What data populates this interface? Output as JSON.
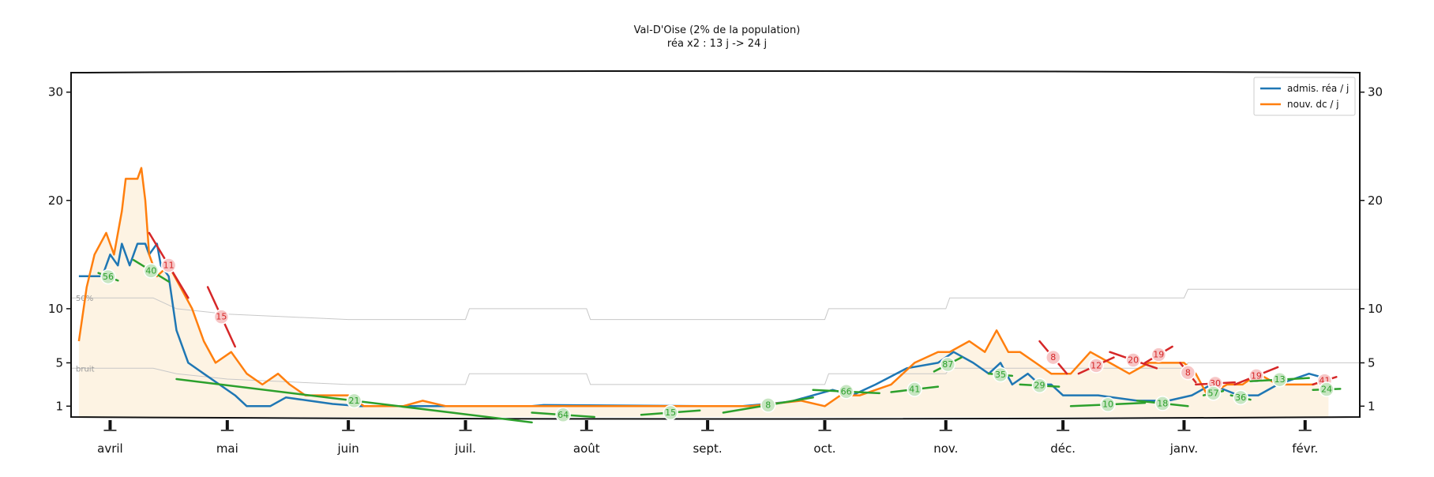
{
  "title": "Val-D'Oise (2% de la population)",
  "subtitle": "réa x2 : 13 j -> 24 j",
  "colors": {
    "blue": "#1f77b4",
    "orange": "#ff7f0e",
    "green": "#2ca02c",
    "red": "#d62728",
    "fill": "#fdf3e3",
    "grey": "#c8c8c8"
  },
  "chart_data": {
    "type": "line",
    "title": "Val-D'Oise (2% de la population)",
    "subtitle": "réa x2 : 13 j -> 24 j",
    "xlabel": "",
    "ylabel": "",
    "ylim": [
      0,
      31.8
    ],
    "y_ticks": [
      1,
      5,
      10,
      20,
      30
    ],
    "y_tick_labels": [
      "1",
      "5",
      "10",
      "20",
      "30"
    ],
    "x_range": [
      "2020-03-22",
      "2021-02-15"
    ],
    "x_ticks": [
      {
        "date": "2020-04-01",
        "label": "avril"
      },
      {
        "date": "2020-05-01",
        "label": "mai"
      },
      {
        "date": "2020-06-01",
        "label": "juin"
      },
      {
        "date": "2020-07-01",
        "label": "juil."
      },
      {
        "date": "2020-08-01",
        "label": "août"
      },
      {
        "date": "2020-09-01",
        "label": "sept."
      },
      {
        "date": "2020-10-01",
        "label": "oct."
      },
      {
        "date": "2020-11-01",
        "label": "nov."
      },
      {
        "date": "2020-12-01",
        "label": "déc."
      },
      {
        "date": "2021-01-01",
        "label": "janv."
      },
      {
        "date": "2021-02-01",
        "label": "févr."
      }
    ],
    "legend": {
      "position": "top-right",
      "entries": [
        "admis. réa / j",
        "nouv. dc / j"
      ]
    },
    "series": [
      {
        "name": "admis. réa / j",
        "color": "#1f77b4",
        "points": [
          [
            "2020-03-24",
            13
          ],
          [
            "2020-03-30",
            13
          ],
          [
            "2020-04-01",
            15
          ],
          [
            "2020-04-03",
            14
          ],
          [
            "2020-04-04",
            16
          ],
          [
            "2020-04-06",
            14
          ],
          [
            "2020-04-08",
            16
          ],
          [
            "2020-04-10",
            16
          ],
          [
            "2020-04-11",
            15
          ],
          [
            "2020-04-13",
            16
          ],
          [
            "2020-04-14",
            14
          ],
          [
            "2020-04-16",
            13
          ],
          [
            "2020-04-18",
            8
          ],
          [
            "2020-04-21",
            5
          ],
          [
            "2020-04-25",
            4
          ],
          [
            "2020-04-29",
            3
          ],
          [
            "2020-05-03",
            2
          ],
          [
            "2020-05-06",
            1
          ],
          [
            "2020-05-12",
            1
          ],
          [
            "2020-05-16",
            1.8
          ],
          [
            "2020-05-22",
            1.5
          ],
          [
            "2020-05-28",
            1.2
          ],
          [
            "2020-06-04",
            1
          ],
          [
            "2020-07-18",
            1
          ],
          [
            "2020-07-21",
            1.1
          ],
          [
            "2020-09-02",
            1
          ],
          [
            "2020-09-10",
            1
          ],
          [
            "2020-09-22",
            1.4
          ],
          [
            "2020-09-28",
            2
          ],
          [
            "2020-10-03",
            2.5
          ],
          [
            "2020-10-08",
            2
          ],
          [
            "2020-10-14",
            3
          ],
          [
            "2020-10-22",
            4.5
          ],
          [
            "2020-10-30",
            5
          ],
          [
            "2020-11-03",
            6
          ],
          [
            "2020-11-08",
            5
          ],
          [
            "2020-11-12",
            4
          ],
          [
            "2020-11-15",
            5
          ],
          [
            "2020-11-18",
            3
          ],
          [
            "2020-11-22",
            4
          ],
          [
            "2020-11-25",
            3
          ],
          [
            "2020-11-28",
            3
          ],
          [
            "2020-12-01",
            2
          ],
          [
            "2020-12-10",
            2
          ],
          [
            "2020-12-20",
            1.5
          ],
          [
            "2020-12-28",
            1.5
          ],
          [
            "2021-01-03",
            2
          ],
          [
            "2021-01-08",
            3
          ],
          [
            "2021-01-15",
            2
          ],
          [
            "2021-01-20",
            2
          ],
          [
            "2021-01-25",
            3
          ],
          [
            "2021-02-02",
            4
          ],
          [
            "2021-02-07",
            3.5
          ]
        ]
      },
      {
        "name": "nouv. dc / j",
        "color": "#ff7f0e",
        "points": [
          [
            "2020-03-24",
            7
          ],
          [
            "2020-03-26",
            12
          ],
          [
            "2020-03-28",
            15
          ],
          [
            "2020-03-31",
            17
          ],
          [
            "2020-04-02",
            15
          ],
          [
            "2020-04-04",
            19
          ],
          [
            "2020-04-05",
            22
          ],
          [
            "2020-04-08",
            22
          ],
          [
            "2020-04-09",
            23
          ],
          [
            "2020-04-10",
            20
          ],
          [
            "2020-04-11",
            15
          ],
          [
            "2020-04-13",
            13
          ],
          [
            "2020-04-16",
            14
          ],
          [
            "2020-04-19",
            12
          ],
          [
            "2020-04-22",
            10
          ],
          [
            "2020-04-25",
            7
          ],
          [
            "2020-04-28",
            5
          ],
          [
            "2020-05-02",
            6
          ],
          [
            "2020-05-06",
            4
          ],
          [
            "2020-05-10",
            3
          ],
          [
            "2020-05-14",
            4
          ],
          [
            "2020-05-17",
            3
          ],
          [
            "2020-05-21",
            2
          ],
          [
            "2020-05-26",
            2
          ],
          [
            "2020-06-01",
            2
          ],
          [
            "2020-06-05",
            1
          ],
          [
            "2020-06-15",
            1
          ],
          [
            "2020-06-20",
            1.5
          ],
          [
            "2020-06-26",
            1
          ],
          [
            "2020-07-02",
            1
          ],
          [
            "2020-07-10",
            1
          ],
          [
            "2020-08-01",
            1
          ],
          [
            "2020-08-07",
            1
          ],
          [
            "2020-08-15",
            1
          ],
          [
            "2020-08-22",
            1
          ],
          [
            "2020-08-30",
            1
          ],
          [
            "2020-09-05",
            1
          ],
          [
            "2020-09-12",
            1
          ],
          [
            "2020-09-25",
            1.5
          ],
          [
            "2020-10-01",
            1
          ],
          [
            "2020-10-05",
            2
          ],
          [
            "2020-10-10",
            2
          ],
          [
            "2020-10-18",
            3
          ],
          [
            "2020-10-24",
            5
          ],
          [
            "2020-10-30",
            6
          ],
          [
            "2020-11-02",
            6
          ],
          [
            "2020-11-07",
            7
          ],
          [
            "2020-11-11",
            6
          ],
          [
            "2020-11-14",
            8
          ],
          [
            "2020-11-17",
            6
          ],
          [
            "2020-11-20",
            6
          ],
          [
            "2020-11-24",
            5
          ],
          [
            "2020-11-28",
            4
          ],
          [
            "2020-12-03",
            4
          ],
          [
            "2020-12-08",
            6
          ],
          [
            "2020-12-13",
            5
          ],
          [
            "2020-12-18",
            4
          ],
          [
            "2020-12-23",
            5
          ],
          [
            "2020-12-28",
            5
          ],
          [
            "2021-01-01",
            5
          ],
          [
            "2021-01-04",
            4
          ],
          [
            "2021-01-07",
            2
          ],
          [
            "2021-01-12",
            3
          ],
          [
            "2021-01-16",
            3
          ],
          [
            "2021-01-20",
            4
          ],
          [
            "2021-01-25",
            3
          ],
          [
            "2021-01-30",
            3
          ],
          [
            "2021-02-03",
            3
          ],
          [
            "2021-02-07",
            3.5
          ]
        ]
      }
    ],
    "trend_segments": [
      {
        "color": "green",
        "label": "56",
        "start": [
          "2020-03-29",
          13.3
        ],
        "end": [
          "2020-04-03",
          12.6
        ]
      },
      {
        "color": "green",
        "label": "40",
        "start": [
          "2020-04-07",
          14.5
        ],
        "end": [
          "2020-04-16",
          12.5
        ]
      },
      {
        "color": "red",
        "label": "11",
        "start": [
          "2020-04-11",
          17.0
        ],
        "end": [
          "2020-04-21",
          11.0
        ]
      },
      {
        "color": "red",
        "label": "15",
        "start": [
          "2020-04-26",
          12.0
        ],
        "end": [
          "2020-05-03",
          6.5
        ]
      },
      {
        "color": "green",
        "label": "21",
        "start": [
          "2020-04-18",
          3.5
        ],
        "end": [
          "2020-07-18",
          -0.5
        ]
      },
      {
        "color": "green",
        "label": "64",
        "start": [
          "2020-07-18",
          0.4
        ],
        "end": [
          "2020-08-03",
          0.0
        ]
      },
      {
        "color": "green",
        "label": "15",
        "start": [
          "2020-08-15",
          0.2
        ],
        "end": [
          "2020-08-30",
          0.6
        ]
      },
      {
        "color": "green",
        "label": "8",
        "start": [
          "2020-09-05",
          0.4
        ],
        "end": [
          "2020-09-28",
          1.8
        ]
      },
      {
        "color": "green",
        "label": "66",
        "start": [
          "2020-09-28",
          2.5
        ],
        "end": [
          "2020-10-15",
          2.2
        ]
      },
      {
        "color": "green",
        "label": "41",
        "start": [
          "2020-10-18",
          2.3
        ],
        "end": [
          "2020-10-30",
          2.8
        ]
      },
      {
        "color": "green",
        "label": "87",
        "start": [
          "2020-10-29",
          4.2
        ],
        "end": [
          "2020-11-05",
          5.5
        ]
      },
      {
        "color": "green",
        "label": "35",
        "start": [
          "2020-11-12",
          4.0
        ],
        "end": [
          "2020-11-18",
          3.8
        ]
      },
      {
        "color": "green",
        "label": "29",
        "start": [
          "2020-11-20",
          3.0
        ],
        "end": [
          "2020-11-30",
          2.8
        ]
      },
      {
        "color": "red",
        "label": "8",
        "start": [
          "2020-11-25",
          7.0
        ],
        "end": [
          "2020-12-02",
          4.0
        ]
      },
      {
        "color": "red",
        "label": "12",
        "start": [
          "2020-12-05",
          4.0
        ],
        "end": [
          "2020-12-14",
          5.5
        ]
      },
      {
        "color": "red",
        "label": "20",
        "start": [
          "2020-12-13",
          6.0
        ],
        "end": [
          "2020-12-25",
          4.5
        ]
      },
      {
        "color": "green",
        "label": "10",
        "start": [
          "2020-12-03",
          1.0
        ],
        "end": [
          "2020-12-22",
          1.3
        ]
      },
      {
        "color": "green",
        "label": "18",
        "start": [
          "2020-12-20",
          1.5
        ],
        "end": [
          "2021-01-02",
          1.0
        ]
      },
      {
        "color": "red",
        "label": "19",
        "start": [
          "2020-12-22",
          5.0
        ],
        "end": [
          "2020-12-29",
          6.5
        ]
      },
      {
        "color": "red",
        "label": "8",
        "start": [
          "2020-12-31",
          5.0
        ],
        "end": [
          "2021-01-04",
          3.2
        ]
      },
      {
        "color": "red",
        "label": "30",
        "start": [
          "2021-01-04",
          3.0
        ],
        "end": [
          "2021-01-14",
          3.2
        ]
      },
      {
        "color": "green",
        "label": "57",
        "start": [
          "2021-01-06",
          2.0
        ],
        "end": [
          "2021-01-11",
          2.4
        ]
      },
      {
        "color": "green",
        "label": "36",
        "start": [
          "2021-01-13",
          2.0
        ],
        "end": [
          "2021-01-18",
          1.6
        ]
      },
      {
        "color": "red",
        "label": "19",
        "start": [
          "2021-01-14",
          3.0
        ],
        "end": [
          "2021-01-25",
          4.6
        ]
      },
      {
        "color": "green",
        "label": "13",
        "start": [
          "2021-01-18",
          3.3
        ],
        "end": [
          "2021-02-02",
          3.6
        ]
      },
      {
        "color": "red",
        "label": "41",
        "start": [
          "2021-02-03",
          3.0
        ],
        "end": [
          "2021-02-09",
          3.7
        ]
      },
      {
        "color": "green",
        "label": "24",
        "start": [
          "2021-02-03",
          2.5
        ],
        "end": [
          "2021-02-10",
          2.6
        ]
      }
    ],
    "threshold_lines": [
      {
        "label": "50%",
        "points": [
          [
            "2020-03-22",
            11
          ],
          [
            "2020-04-12",
            11
          ],
          [
            "2020-04-18",
            10
          ],
          [
            "2020-05-01",
            9.5
          ],
          [
            "2020-06-01",
            9
          ],
          [
            "2020-07-01",
            9
          ],
          [
            "2020-07-02",
            10
          ],
          [
            "2020-08-01",
            10
          ],
          [
            "2020-08-02",
            9
          ],
          [
            "2020-10-01",
            9
          ],
          [
            "2020-10-02",
            10
          ],
          [
            "2020-11-01",
            10
          ],
          [
            "2020-11-02",
            11
          ],
          [
            "2021-01-01",
            11
          ],
          [
            "2021-01-02",
            11.8
          ],
          [
            "2021-02-15",
            11.8
          ]
        ]
      },
      {
        "label": "bruit",
        "points": [
          [
            "2020-03-22",
            4.5
          ],
          [
            "2020-04-12",
            4.5
          ],
          [
            "2020-04-18",
            4
          ],
          [
            "2020-05-01",
            3.5
          ],
          [
            "2020-06-01",
            3
          ],
          [
            "2020-07-01",
            3
          ],
          [
            "2020-07-02",
            4
          ],
          [
            "2020-08-01",
            4
          ],
          [
            "2020-08-02",
            3
          ],
          [
            "2020-10-01",
            3
          ],
          [
            "2020-10-02",
            4
          ],
          [
            "2020-11-01",
            4
          ],
          [
            "2020-11-02",
            4.5
          ],
          [
            "2021-01-01",
            4.5
          ],
          [
            "2021-01-02",
            5
          ],
          [
            "2021-02-15",
            5
          ]
        ]
      }
    ]
  }
}
